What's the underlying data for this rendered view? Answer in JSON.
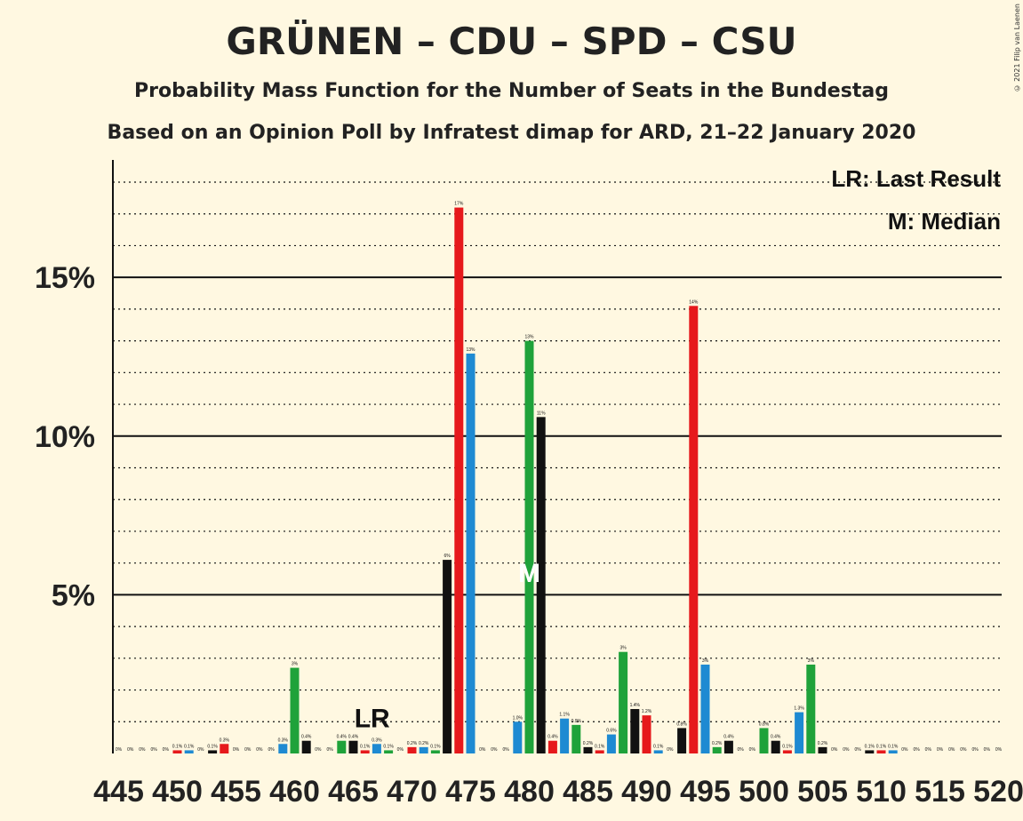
{
  "title": "GRÜNEN – CDU – SPD – CSU",
  "subtitle": "Probability Mass Function for the Number of Seats in the Bundestag",
  "subtitle2": "Based on an Opinion Poll by Infratest dimap for ARD, 21–22 January 2020",
  "copyright": "© 2021 Filip van Laenen",
  "legend": {
    "lr": "LR: Last Result",
    "median": "M: Median"
  },
  "marks": {
    "lr": "LR",
    "median": "M",
    "lr_seat": 466,
    "median_seat": 480
  },
  "colors": {
    "green": "#1fa23a",
    "black": "#111111",
    "red": "#e6191c",
    "blue": "#1e8ad2",
    "background": "#fff8e1"
  },
  "chart_data": {
    "type": "bar",
    "xlabel": "",
    "ylabel": "",
    "ylim": [
      0,
      18.7
    ],
    "y_ticks": [
      {
        "value": 5,
        "label": "5%"
      },
      {
        "value": 10,
        "label": "10%"
      },
      {
        "value": 15,
        "label": "15%"
      }
    ],
    "x_ticks": [
      445,
      450,
      455,
      460,
      465,
      470,
      475,
      480,
      485,
      490,
      495,
      500,
      505,
      510,
      515,
      520
    ],
    "color_cycle": [
      "black",
      "red",
      "blue",
      "green"
    ],
    "x": [
      445,
      446,
      447,
      448,
      449,
      450,
      451,
      452,
      453,
      454,
      455,
      456,
      457,
      458,
      459,
      460,
      461,
      462,
      463,
      464,
      465,
      466,
      467,
      468,
      469,
      470,
      471,
      472,
      473,
      474,
      475,
      476,
      477,
      478,
      479,
      480,
      481,
      482,
      483,
      484,
      485,
      486,
      487,
      488,
      489,
      490,
      491,
      492,
      493,
      494,
      495,
      496,
      497,
      498,
      499,
      500,
      501,
      502,
      503,
      504,
      505,
      506,
      507,
      508,
      509,
      510,
      511,
      512,
      513,
      514,
      515,
      516,
      517,
      518,
      519,
      520
    ],
    "values": [
      0,
      0,
      0,
      0,
      0,
      0.1,
      0.1,
      0,
      0.1,
      0.3,
      0,
      0,
      0,
      0,
      0.3,
      2.7,
      0.4,
      0,
      0,
      0.4,
      0.4,
      0.1,
      0.3,
      0.1,
      0,
      0.2,
      0.2,
      0.1,
      6.1,
      17.2,
      12.6,
      0,
      0,
      0,
      1.0,
      13.0,
      10.6,
      0.4,
      1.1,
      0.9,
      0.2,
      0.1,
      0.6,
      3.2,
      1.4,
      1.2,
      0.1,
      0,
      0.8,
      14.1,
      2.8,
      0.2,
      0.4,
      0,
      0,
      0.8,
      0.4,
      0.1,
      1.3,
      2.8,
      0.2,
      0,
      0,
      0,
      0.1,
      0.1,
      0.1,
      0,
      0,
      0,
      0,
      0,
      0,
      0,
      0,
      0
    ],
    "labels": [
      "0%",
      "0%",
      "0%",
      "0%",
      "0%",
      "0.1%",
      "0.1%",
      "0%",
      "0.1%",
      "0.3%",
      "0%",
      "0%",
      "0%",
      "0%",
      "0.3%",
      "3%",
      "0.4%",
      "0%",
      "0%",
      "0.4%",
      "0.4%",
      "0.1%",
      "0.3%",
      "0.1%",
      "0%",
      "0.2%",
      "0.2%",
      "0.1%",
      "6%",
      "17%",
      "13%",
      "0%",
      "0%",
      "0%",
      "1.0%",
      "13%",
      "11%",
      "0.4%",
      "1.1%",
      "0.9%",
      "0.2%",
      "0.1%",
      "0.6%",
      "3%",
      "1.4%",
      "1.2%",
      "0.1%",
      "0%",
      "0.8%",
      "14%",
      "3%",
      "0.2%",
      "0.4%",
      "0%",
      "0%",
      "0.8%",
      "0.4%",
      "0.1%",
      "1.3%",
      "3%",
      "0.2%",
      "0%",
      "0%",
      "0%",
      "0.1%",
      "0.1%",
      "0.1%",
      "0%",
      "0%",
      "0%",
      "0%",
      "0%",
      "0%",
      "0%",
      "0%",
      "0%"
    ]
  }
}
